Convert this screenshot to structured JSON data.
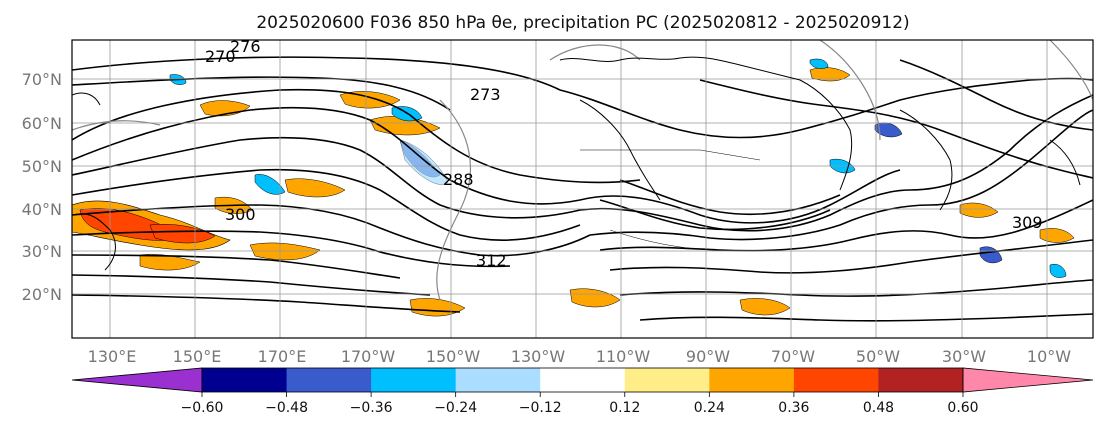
{
  "figure": {
    "title": "2025020600 F036 850 hPa θe, precipitation PC (2025020812 - 2025020912)"
  },
  "map": {
    "lon_labels": [
      "130°E",
      "150°E",
      "170°E",
      "170°W",
      "150°W",
      "130°W",
      "110°W",
      "90°W",
      "70°W",
      "50°W",
      "30°W",
      "10°W"
    ],
    "lat_labels": [
      "70°N",
      "60°N",
      "50°N",
      "40°N",
      "30°N",
      "20°N"
    ],
    "contour_labels": [
      "270",
      "273",
      "276",
      "288",
      "300",
      "309",
      "312"
    ],
    "colors": {
      "coast": "#000000",
      "grid": "#999999",
      "theta_e_contour": "#000000",
      "pc_positive_low": "#ffee88",
      "pc_positive_mid": "#ffa500",
      "pc_positive_high": "#ff4500",
      "pc_negative_low": "#aaddff",
      "pc_negative_mid": "#00bfff",
      "pc_negative_high": "#3a5bcc"
    }
  },
  "colorbar": {
    "tick_labels": [
      "−0.60",
      "−0.48",
      "−0.36",
      "−0.24",
      "−0.12",
      "0.12",
      "0.24",
      "0.36",
      "0.48",
      "0.60"
    ],
    "colors": [
      "#9b30d0",
      "#000090",
      "#3a5bcc",
      "#00bfff",
      "#aaddff",
      "#ffffff",
      "#ffee88",
      "#ffa500",
      "#ff4500",
      "#b22222",
      "#ff88aa"
    ]
  }
}
